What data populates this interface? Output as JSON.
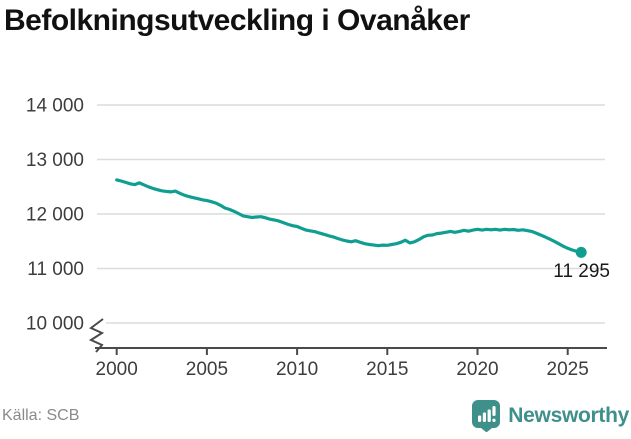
{
  "title": "Befolkningsutveckling i Ovanåker",
  "source": "Källa: SCB",
  "branding": {
    "name": "Newsworthy",
    "icon": "newsworthy-barchart-exclamation-icon",
    "color": "#3f908a"
  },
  "colors": {
    "line": "#0f9e90",
    "grid": "#dcdcdc",
    "axis": "#4a4a4a",
    "tick_text": "#3d3d3d",
    "title_text": "#111111",
    "source_text": "#8a8a8a"
  },
  "chart_data": {
    "type": "line",
    "title": "Befolkningsutveckling i Ovanåker",
    "xlabel": "",
    "ylabel": "",
    "grid": "horizontal",
    "legend": "none",
    "axis_break_below": 10000,
    "ylim": [
      10000,
      14300
    ],
    "xlim": [
      2000,
      2026
    ],
    "x_ticks": [
      2000,
      2005,
      2010,
      2015,
      2020,
      2025
    ],
    "y_ticks": [
      "14 000",
      "13 000",
      "12 000",
      "11 000",
      "10 000"
    ],
    "y_tick_values": [
      14000,
      13000,
      12000,
      11000,
      10000
    ],
    "series_name": "Befolkning",
    "x_start": 2000,
    "x_step": 0.25,
    "last_point_label": "11 295",
    "last_point_value": 11295,
    "values": [
      12625,
      12605,
      12580,
      12555,
      12540,
      12570,
      12535,
      12500,
      12470,
      12445,
      12425,
      12415,
      12405,
      12420,
      12380,
      12345,
      12320,
      12300,
      12280,
      12260,
      12245,
      12225,
      12200,
      12160,
      12110,
      12085,
      12050,
      12010,
      11965,
      11950,
      11935,
      11945,
      11950,
      11930,
      11905,
      11890,
      11870,
      11840,
      11810,
      11785,
      11770,
      11735,
      11705,
      11690,
      11675,
      11650,
      11625,
      11600,
      11580,
      11550,
      11525,
      11505,
      11490,
      11510,
      11480,
      11455,
      11440,
      11430,
      11420,
      11430,
      11425,
      11440,
      11455,
      11480,
      11520,
      11470,
      11490,
      11530,
      11580,
      11610,
      11615,
      11640,
      11650,
      11665,
      11680,
      11665,
      11680,
      11700,
      11685,
      11705,
      11720,
      11705,
      11720,
      11710,
      11720,
      11705,
      11720,
      11710,
      11715,
      11700,
      11710,
      11695,
      11680,
      11650,
      11615,
      11580,
      11540,
      11500,
      11455,
      11410,
      11370,
      11340,
      11315,
      11295
    ]
  }
}
